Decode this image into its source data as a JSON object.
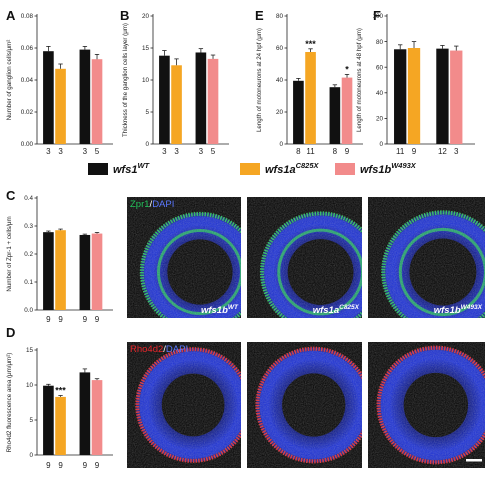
{
  "colors": {
    "wt": "#111111",
    "wfs1a": "#f5a623",
    "wfs1b": "#f28b8b",
    "axis": "#222222",
    "image_bg": "#000000",
    "dapi": "#1a2fd6",
    "zpr1": "#22c25a",
    "rho4d2": "#e8252a"
  },
  "legend": {
    "items": [
      {
        "base": "wfs1",
        "sup": "WT",
        "color_key": "wt"
      },
      {
        "base": "wfs1a",
        "sup": "C825X",
        "color_key": "wfs1a"
      },
      {
        "base": "wfs1b",
        "sup": "W493X",
        "color_key": "wfs1b"
      }
    ]
  },
  "chart_data": [
    {
      "panel": "A",
      "type": "bar",
      "ylabel": "Number of ganglion cells/μm²",
      "ylim": [
        0,
        0.08
      ],
      "yticks": [
        "0.00",
        "0.02",
        "0.04",
        "0.06",
        "0.08"
      ],
      "yticks_values": [
        0,
        0.02,
        0.04,
        0.06,
        0.08
      ],
      "groups": [
        {
          "bars": [
            {
              "genotype": "wt",
              "value": 0.058,
              "error": 0.003,
              "n": "3"
            },
            {
              "genotype": "wfs1a",
              "value": 0.047,
              "error": 0.003,
              "n": "3"
            }
          ]
        },
        {
          "bars": [
            {
              "genotype": "wt",
              "value": 0.059,
              "error": 0.002,
              "n": "3"
            },
            {
              "genotype": "wfs1b",
              "value": 0.053,
              "error": 0.003,
              "n": "5"
            }
          ]
        }
      ]
    },
    {
      "panel": "B",
      "type": "bar",
      "ylabel": "Thickness of the ganglion cells layer (μm)",
      "ylim": [
        0,
        20
      ],
      "yticks": [
        "0",
        "5",
        "10",
        "15",
        "20"
      ],
      "yticks_values": [
        0,
        5,
        10,
        15,
        20
      ],
      "groups": [
        {
          "bars": [
            {
              "genotype": "wt",
              "value": 13.8,
              "error": 0.8,
              "n": "3"
            },
            {
              "genotype": "wfs1a",
              "value": 12.3,
              "error": 1.0,
              "n": "3"
            }
          ]
        },
        {
          "bars": [
            {
              "genotype": "wt",
              "value": 14.3,
              "error": 0.6,
              "n": "3"
            },
            {
              "genotype": "wfs1b",
              "value": 13.3,
              "error": 0.6,
              "n": "5"
            }
          ]
        }
      ]
    },
    {
      "panel": "E",
      "type": "bar",
      "ylabel": "Length of motoneurons at 24 hpf (μm)",
      "ylim": [
        0,
        80
      ],
      "yticks": [
        "0",
        "20",
        "40",
        "60",
        "80"
      ],
      "yticks_values": [
        0,
        20,
        40,
        60,
        80
      ],
      "groups": [
        {
          "bars": [
            {
              "genotype": "wt",
              "value": 39.5,
              "error": 1.5,
              "n": "8"
            },
            {
              "genotype": "wfs1a",
              "value": 57.5,
              "error": 2.0,
              "n": "11",
              "sig": "***"
            }
          ]
        },
        {
          "bars": [
            {
              "genotype": "wt",
              "value": 35.5,
              "error": 1.5,
              "n": "8"
            },
            {
              "genotype": "wfs1b",
              "value": 41.5,
              "error": 2.0,
              "n": "9",
              "sig": "*"
            }
          ]
        }
      ]
    },
    {
      "panel": "F",
      "type": "bar",
      "ylabel": "Length of motoneurons at 48 hpf (μm)",
      "ylim": [
        0,
        100
      ],
      "yticks": [
        "0",
        "20",
        "40",
        "60",
        "80",
        "100"
      ],
      "yticks_values": [
        0,
        20,
        40,
        60,
        80,
        100
      ],
      "groups": [
        {
          "bars": [
            {
              "genotype": "wt",
              "value": 74.0,
              "error": 3.5,
              "n": "11"
            },
            {
              "genotype": "wfs1a",
              "value": 75.0,
              "error": 5.0,
              "n": "9"
            }
          ]
        },
        {
          "bars": [
            {
              "genotype": "wt",
              "value": 74.5,
              "error": 2.5,
              "n": "12"
            },
            {
              "genotype": "wfs1b",
              "value": 73.0,
              "error": 3.5,
              "n": "3"
            }
          ]
        }
      ]
    },
    {
      "panel": "C",
      "type": "bar",
      "ylabel": "Number of Zpr-1 + cells/μm",
      "ylim": [
        0,
        0.4
      ],
      "yticks": [
        "0.0",
        "0.1",
        "0.2",
        "0.3",
        "0.4"
      ],
      "yticks_values": [
        0,
        0.1,
        0.2,
        0.3,
        0.4
      ],
      "groups": [
        {
          "bars": [
            {
              "genotype": "wt",
              "value": 0.278,
              "error": 0.004,
              "n": "9"
            },
            {
              "genotype": "wfs1a",
              "value": 0.285,
              "error": 0.004,
              "n": "9"
            }
          ]
        },
        {
          "bars": [
            {
              "genotype": "wt",
              "value": 0.268,
              "error": 0.003,
              "n": "9"
            },
            {
              "genotype": "wfs1b",
              "value": 0.273,
              "error": 0.004,
              "n": "9"
            }
          ]
        }
      ]
    },
    {
      "panel": "D",
      "type": "bar",
      "ylabel": "Rho4d2 fluorescence area (μm/μm²)",
      "ylim": [
        0,
        15
      ],
      "yticks": [
        "0",
        "5",
        "10",
        "15"
      ],
      "yticks_values": [
        0,
        5,
        10,
        15
      ],
      "groups": [
        {
          "bars": [
            {
              "genotype": "wt",
              "value": 9.9,
              "error": 0.2,
              "n": "9"
            },
            {
              "genotype": "wfs1a",
              "value": 8.3,
              "error": 0.2,
              "n": "9",
              "sig": "***"
            }
          ]
        },
        {
          "bars": [
            {
              "genotype": "wt",
              "value": 11.8,
              "error": 0.5,
              "n": "9"
            },
            {
              "genotype": "wfs1b",
              "value": 10.7,
              "error": 0.2,
              "n": "9"
            }
          ]
        }
      ]
    }
  ],
  "micrographs": {
    "zpr1_row": {
      "stain_label_a": "Zpr1",
      "stain_label_sep": "/",
      "stain_label_b": "DAPI",
      "images": [
        {
          "geno_base": "wfs1b",
          "geno_sup": "WT"
        },
        {
          "geno_base": "wfs1a",
          "geno_sup": "C825X"
        },
        {
          "geno_base": "wfs1b",
          "geno_sup": "W493X"
        }
      ]
    },
    "rho_row": {
      "stain_label_a": "Rho4d2",
      "stain_label_sep": "/",
      "stain_label_b": "DAPI"
    }
  }
}
